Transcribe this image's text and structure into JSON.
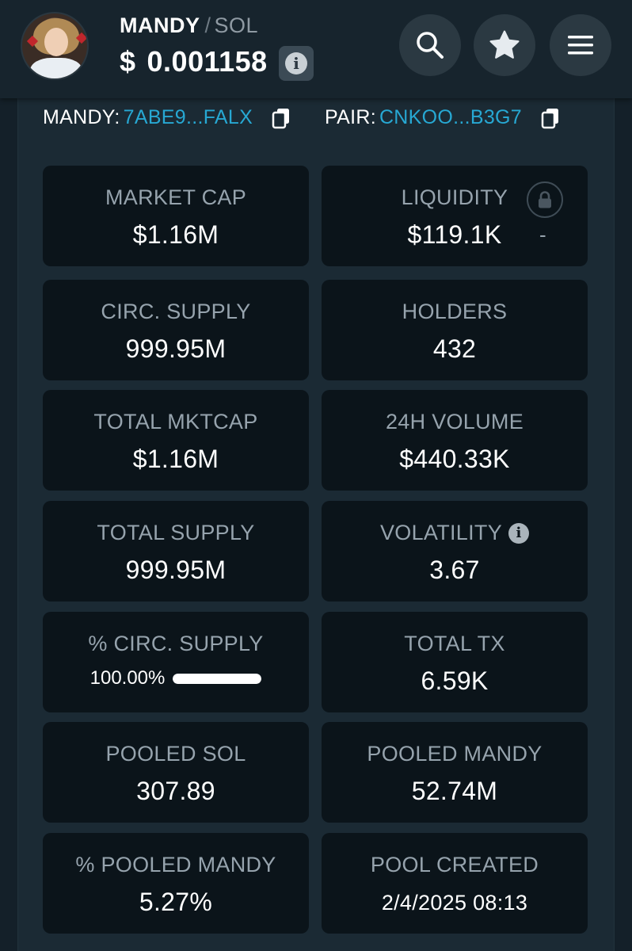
{
  "header": {
    "token_symbol": "MANDY",
    "separator": "/",
    "quote_symbol": "SOL",
    "currency_sign": "$",
    "price": "0.001158",
    "info_icon": "info-icon",
    "search_icon": "search-icon",
    "favorite_icon": "star-icon",
    "menu_icon": "hamburger-menu-icon"
  },
  "addresses": {
    "token_label": "MANDY:",
    "token_address": "7ABE9...FALX",
    "pair_label": "PAIR:",
    "pair_address": "CNKOO...B3G7",
    "copy_icon": "copy-icon"
  },
  "stats": {
    "market_cap": {
      "title": "MARKET CAP",
      "value": "$1.16M"
    },
    "liquidity": {
      "title": "LIQUIDITY",
      "value": "$119.1K",
      "lock_status": "-"
    },
    "circ_supply": {
      "title": "CIRC. SUPPLY",
      "value": "999.95M"
    },
    "holders": {
      "title": "HOLDERS",
      "value": "432"
    },
    "total_mktcap": {
      "title": "TOTAL MKTCAP",
      "value": "$1.16M"
    },
    "volume_24h": {
      "title": "24H VOLUME",
      "value": "$440.33K"
    },
    "total_supply": {
      "title": "TOTAL SUPPLY",
      "value": "999.95M"
    },
    "volatility": {
      "title": "VOLATILITY",
      "value": "3.67"
    },
    "pct_circ_supply": {
      "title": "% CIRC. SUPPLY",
      "value": "100.00%",
      "fill_fraction": 1.0
    },
    "total_tx": {
      "title": "TOTAL TX",
      "value": "6.59K"
    },
    "pooled_sol": {
      "title": "POOLED SOL",
      "value": "307.89"
    },
    "pooled_mandy": {
      "title": "POOLED MANDY",
      "value": "52.74M"
    },
    "pct_pooled_mandy": {
      "title": "% POOLED MANDY",
      "value": "5.27%"
    },
    "pool_created": {
      "title": "POOL CREATED",
      "value": "2/4/2025 08:13"
    }
  },
  "colors": {
    "accent_link": "#27a8d3",
    "card_bg": "#0b141a",
    "panel_bg": "#1b2a34",
    "header_bg": "#17242d"
  }
}
